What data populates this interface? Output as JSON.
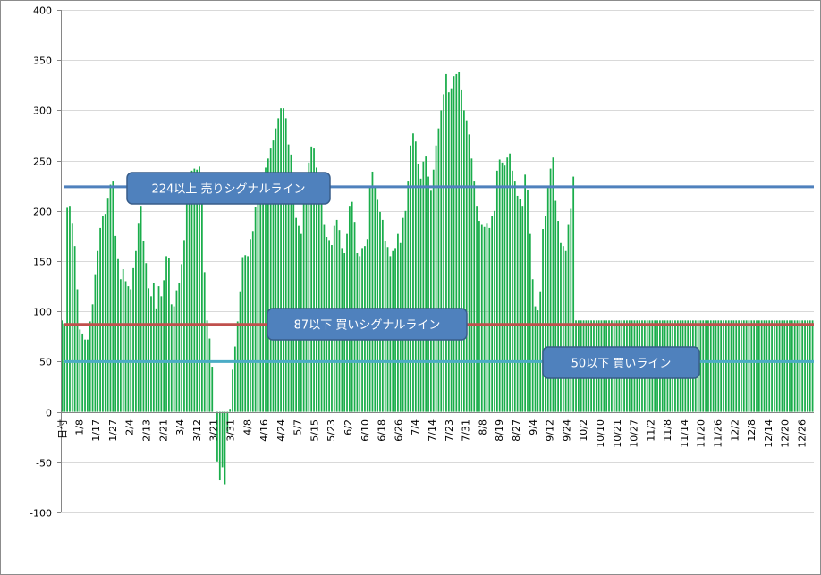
{
  "chart_data": {
    "type": "bar",
    "title": "",
    "xlabel": "",
    "ylabel": "",
    "ylim": [
      -100,
      400
    ],
    "yticks": [
      -100,
      -50,
      0,
      50,
      100,
      150,
      200,
      250,
      300,
      350,
      400
    ],
    "grid": true,
    "x_first_label": "日付",
    "x_tick_labels": [
      "1/8",
      "1/17",
      "1/27",
      "2/4",
      "2/13",
      "2/21",
      "3/4",
      "3/12",
      "3/21",
      "3/31",
      "4/8",
      "4/16",
      "4/24",
      "5/7",
      "5/15",
      "5/23",
      "6/2",
      "6/10",
      "6/18",
      "6/26",
      "7/4",
      "7/14",
      "7/23",
      "7/31",
      "8/8",
      "8/19",
      "8/27",
      "9/4",
      "9/12",
      "9/24",
      "10/2",
      "10/10",
      "10/21",
      "10/27",
      "11/2",
      "11/8",
      "11/14",
      "11/20",
      "11/26",
      "12/2",
      "12/8",
      "12/14",
      "12/20",
      "12/26"
    ],
    "series": [
      {
        "color": "#1aad4b",
        "values": [
          91,
          88,
          203,
          205,
          188,
          165,
          122,
          82,
          78,
          72,
          72,
          90,
          107,
          137,
          160,
          183,
          195,
          197,
          213,
          226,
          230,
          175,
          152,
          132,
          142,
          130,
          125,
          122,
          143,
          160,
          188,
          205,
          170,
          148,
          123,
          115,
          128,
          103,
          125,
          115,
          131,
          155,
          153,
          107,
          105,
          121,
          128,
          147,
          171,
          207,
          226,
          240,
          242,
          241,
          244,
          233,
          139,
          91,
          73,
          45,
          0,
          -50,
          -68,
          -55,
          -72,
          -20,
          3,
          42,
          65,
          90,
          120,
          154,
          156,
          155,
          172,
          180,
          204,
          218,
          228,
          229,
          243,
          252,
          262,
          270,
          282,
          292,
          302,
          302,
          292,
          266,
          256,
          220,
          193,
          185,
          177,
          214,
          236,
          248,
          264,
          262,
          243,
          222,
          214,
          186,
          174,
          171,
          166,
          185,
          191,
          181,
          163,
          158,
          177,
          205,
          209,
          189,
          158,
          155,
          163,
          165,
          172,
          224,
          239,
          223,
          211,
          199,
          191,
          170,
          164,
          155,
          160,
          163,
          177,
          168,
          193,
          200,
          230,
          265,
          277,
          269,
          247,
          232,
          249,
          254,
          234,
          220,
          241,
          265,
          282,
          300,
          316,
          336,
          318,
          322,
          334,
          336,
          338,
          320,
          300,
          290,
          276,
          252,
          230,
          205,
          190,
          186,
          184,
          188,
          183,
          195,
          200,
          240,
          251,
          248,
          245,
          253,
          257,
          240,
          230,
          215,
          212,
          205,
          236,
          221,
          177,
          132,
          105,
          101,
          120,
          182,
          195,
          225,
          242,
          253,
          210,
          190,
          168,
          165,
          160,
          186,
          202,
          234,
          91,
          91,
          91,
          91,
          91,
          91,
          91,
          91,
          91,
          91,
          91,
          91,
          91,
          91,
          91,
          91,
          91,
          91,
          91,
          91,
          91,
          91,
          91,
          91,
          91,
          91,
          91,
          91,
          91,
          91,
          91,
          91,
          91,
          91,
          91,
          91,
          91,
          91,
          91,
          91,
          91,
          91,
          91,
          91,
          91,
          91,
          91,
          91,
          91,
          91,
          91,
          91,
          91,
          91,
          91,
          91,
          91,
          91,
          91,
          91,
          91,
          91,
          91,
          91,
          91,
          91,
          91,
          91,
          91,
          91,
          91,
          91,
          91,
          91,
          91,
          91,
          91,
          91,
          91,
          91,
          91,
          91,
          91,
          91,
          91,
          91,
          91,
          91,
          91,
          91,
          91,
          91,
          91,
          91
        ]
      }
    ],
    "reference_lines": [
      {
        "value": 224,
        "color": "#4f81bd",
        "label": "224以上  売りシグナルライン"
      },
      {
        "value": 87,
        "color": "#c0504d",
        "label": "87以下  買いシグナルライン"
      },
      {
        "value": 50,
        "color": "#4bacc6",
        "label": "50以下  買いライン"
      }
    ],
    "callout_color": "#4f81bd"
  }
}
